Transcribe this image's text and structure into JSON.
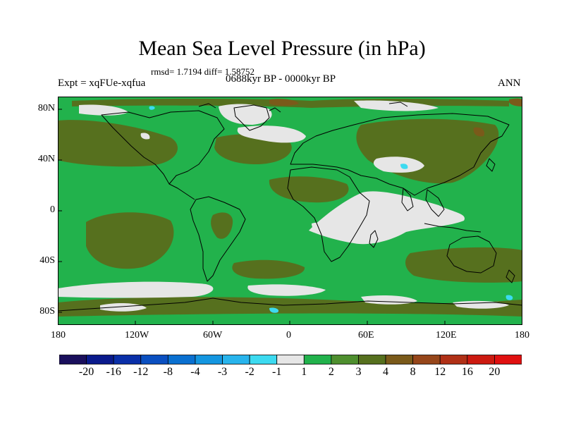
{
  "title": "Mean Sea Level Pressure (in hPa)",
  "stats": "rmsd= 1.7194 diff= 1.58752",
  "experiment": "Expt = xqFUe-xqfua",
  "period": "0688kyr BP - 0000kyr BP",
  "season": "ANN",
  "map": {
    "projection": "cylindrical equidistant",
    "lon_range": [
      -180,
      180
    ],
    "lat_range": [
      -90,
      90
    ],
    "lon_ticks": [
      "180",
      "120W",
      "60W",
      "0",
      "60E",
      "120E",
      "180"
    ],
    "lat_ticks": [
      "80N",
      "40N",
      "0",
      "40S",
      "80S"
    ]
  },
  "colorbar": {
    "labels": [
      "-20",
      "-16",
      "-12",
      "-8",
      "-4",
      "-3",
      "-2",
      "-1",
      "1",
      "2",
      "3",
      "4",
      "8",
      "12",
      "16",
      "20"
    ],
    "colors": [
      "#1a0f5c",
      "#0a1a8c",
      "#0a2fa8",
      "#0a4fc0",
      "#0a70d0",
      "#1496e0",
      "#28b4ec",
      "#3cdaf0",
      "#e6e6e6",
      "#22b24c",
      "#4e8f2e",
      "#56701e",
      "#7a5a1a",
      "#96461a",
      "#b03016",
      "#cc1a10",
      "#e01010"
    ]
  },
  "palette": {
    "white": "#e6e6e6",
    "green": "#22b24c",
    "olive": "#56701e",
    "brown": "#7a5a1a",
    "cyan": "#3cdaf0"
  }
}
